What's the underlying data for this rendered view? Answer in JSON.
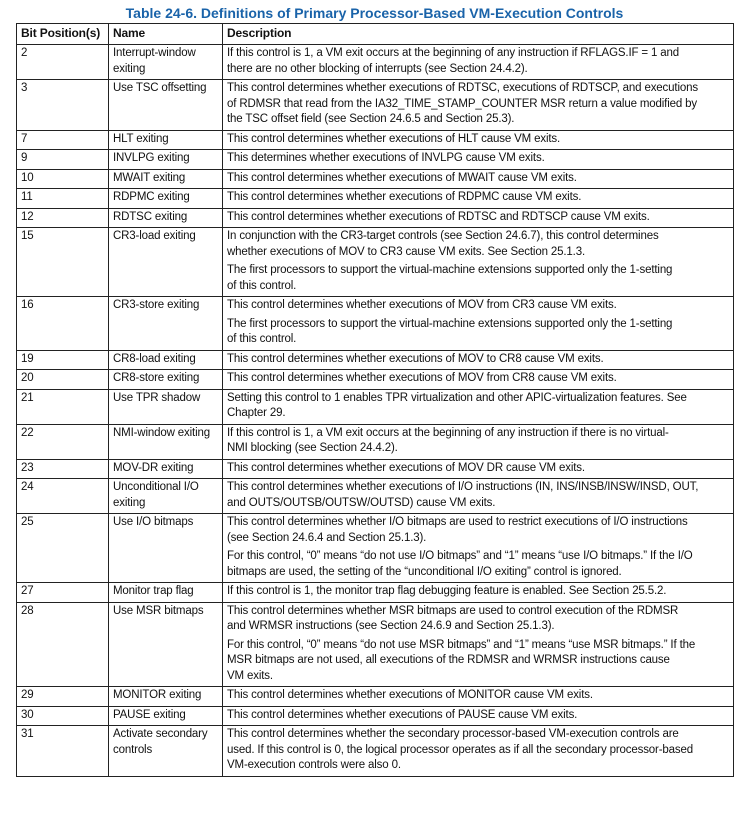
{
  "title": "Table 24-6.  Definitions of Primary Processor-Based VM-Execution Controls",
  "table": {
    "header": [
      "Bit Position(s)",
      "Name",
      "Description"
    ],
    "rows": [
      {
        "bit": "2",
        "name": "Interrupt-window exiting",
        "description": [
          [
            "If this control is 1, a VM exit occurs at the beginning of any instruction if RFLAGS.IF = 1 and",
            "there are no other blocking of interrupts (see Section 24.4.2)."
          ]
        ]
      },
      {
        "bit": "3",
        "name": "Use TSC offsetting",
        "description": [
          [
            "This control determines whether executions of RDTSC, executions of RDTSCP, and executions",
            "of RDMSR that read from the IA32_TIME_STAMP_COUNTER MSR return a value modified by",
            "the TSC offset field (see Section 24.6.5 and Section 25.3)."
          ]
        ]
      },
      {
        "bit": "7",
        "name": "HLT exiting",
        "description": [
          [
            "This control determines whether executions of HLT cause VM exits."
          ]
        ]
      },
      {
        "bit": "9",
        "name": "INVLPG exiting",
        "description": [
          [
            "This determines whether executions of INVLPG cause VM exits."
          ]
        ]
      },
      {
        "bit": "10",
        "name": "MWAIT exiting",
        "description": [
          [
            "This control determines whether executions of MWAIT cause VM exits."
          ]
        ]
      },
      {
        "bit": "11",
        "name": "RDPMC exiting",
        "description": [
          [
            "This control determines whether executions of RDPMC cause VM exits."
          ]
        ]
      },
      {
        "bit": "12",
        "name": "RDTSC exiting",
        "description": [
          [
            "This control determines whether executions of RDTSC and RDTSCP cause VM exits."
          ]
        ]
      },
      {
        "bit": "15",
        "name": "CR3-load exiting",
        "description": [
          [
            "In conjunction with the CR3-target controls (see Section 24.6.7), this control determines",
            "whether executions of MOV to CR3 cause VM exits. See Section 25.1.3."
          ],
          [
            "The first processors to support the virtual-machine extensions supported only the 1-setting",
            "of this control."
          ]
        ]
      },
      {
        "bit": "16",
        "name": "CR3-store exiting",
        "description": [
          [
            "This control determines whether executions of MOV from CR3 cause VM exits."
          ],
          [
            "The first processors to support the virtual-machine extensions supported only the 1-setting",
            "of this control."
          ]
        ]
      },
      {
        "bit": "19",
        "name": "CR8-load exiting",
        "description": [
          [
            "This control determines whether executions of MOV to CR8 cause VM exits."
          ]
        ]
      },
      {
        "bit": "20",
        "name": "CR8-store exiting",
        "description": [
          [
            "This control determines whether executions of MOV from CR8 cause VM exits."
          ]
        ]
      },
      {
        "bit": "21",
        "name": "Use TPR shadow",
        "description": [
          [
            "Setting this control to 1 enables TPR virtualization and other APIC-virtualization features. See",
            "Chapter 29."
          ]
        ]
      },
      {
        "bit": "22",
        "name": "NMI-window exiting",
        "description": [
          [
            "If this control is 1, a VM exit occurs at the beginning of any instruction if there is no virtual-",
            "NMI blocking (see Section 24.4.2)."
          ]
        ]
      },
      {
        "bit": "23",
        "name": "MOV-DR exiting",
        "description": [
          [
            "This control determines whether executions of MOV DR cause VM exits."
          ]
        ]
      },
      {
        "bit": "24",
        "name": "Unconditional I/O exiting",
        "description": [
          [
            "This control determines whether executions of I/O instructions (IN, INS/INSB/INSW/INSD, OUT,",
            "and OUTS/OUTSB/OUTSW/OUTSD) cause VM exits."
          ]
        ]
      },
      {
        "bit": "25",
        "name": "Use I/O bitmaps",
        "description": [
          [
            "This control determines whether I/O bitmaps are used to restrict executions of I/O instructions",
            "(see Section 24.6.4 and Section 25.1.3)."
          ],
          [
            "For this control, “0” means “do not use I/O bitmaps” and “1” means “use I/O bitmaps.” If the I/O",
            "bitmaps are used, the setting of the “unconditional I/O exiting” control is ignored."
          ]
        ]
      },
      {
        "bit": "27",
        "name": "Monitor trap flag",
        "description": [
          [
            "If this control is 1, the monitor trap flag debugging feature is enabled. See Section 25.5.2."
          ]
        ]
      },
      {
        "bit": "28",
        "name": "Use MSR bitmaps",
        "description": [
          [
            "This control determines whether MSR bitmaps are used to control execution of the RDMSR",
            "and WRMSR instructions (see Section 24.6.9 and Section 25.1.3)."
          ],
          [
            "For this control, “0” means “do not use MSR bitmaps” and “1” means “use MSR bitmaps.” If the",
            "MSR bitmaps are not used, all executions of the RDMSR and WRMSR instructions cause",
            "VM exits."
          ]
        ]
      },
      {
        "bit": "29",
        "name": "MONITOR exiting",
        "description": [
          [
            "This control determines whether executions of MONITOR cause VM exits."
          ]
        ]
      },
      {
        "bit": "30",
        "name": "PAUSE exiting",
        "description": [
          [
            "This control determines whether executions of PAUSE cause VM exits."
          ]
        ]
      },
      {
        "bit": "31",
        "name": "Activate secondary controls",
        "description": [
          [
            "This control determines whether the secondary processor-based VM-execution controls are",
            "used. If this control is 0, the logical processor operates as if all the secondary processor-based",
            "VM-execution controls were also 0."
          ]
        ]
      }
    ]
  }
}
